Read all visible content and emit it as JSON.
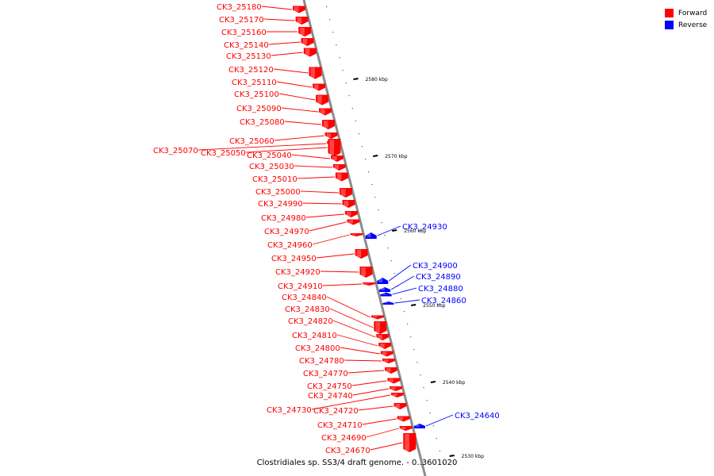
{
  "colors": {
    "forward": "#ff0000",
    "reverse": "#0000ff",
    "backbone": "#8c8c8c",
    "tick": "#000000"
  },
  "legend": {
    "forward_label": "Forward",
    "reverse_label": "Reverse"
  },
  "caption": "Clostridiales sp. SS3/4 draft genome. - 0..3601020",
  "scale_ticks": [
    {
      "label": "2580 kbp",
      "pos_kbp": 2580
    },
    {
      "label": "2570 kbp",
      "pos_kbp": 2570
    },
    {
      "label": "2560 kbp",
      "pos_kbp": 2560
    },
    {
      "label": "2550 kbp",
      "pos_kbp": 2550
    },
    {
      "label": "2540 kbp",
      "pos_kbp": 2540
    },
    {
      "label": "2530 kbp",
      "pos_kbp": 2530
    }
  ],
  "genes": [
    {
      "id": "CK3_25180",
      "strand": "forward"
    },
    {
      "id": "CK3_25170",
      "strand": "forward"
    },
    {
      "id": "CK3_25160",
      "strand": "forward"
    },
    {
      "id": "CK3_25140",
      "strand": "forward"
    },
    {
      "id": "CK3_25130",
      "strand": "forward"
    },
    {
      "id": "CK3_25120",
      "strand": "forward"
    },
    {
      "id": "CK3_25110",
      "strand": "forward"
    },
    {
      "id": "CK3_25100",
      "strand": "forward"
    },
    {
      "id": "CK3_25090",
      "strand": "forward"
    },
    {
      "id": "CK3_25080",
      "strand": "forward"
    },
    {
      "id": "CK3_25060",
      "strand": "forward"
    },
    {
      "id": "CK3_25070",
      "strand": "forward"
    },
    {
      "id": "CK3_25050",
      "strand": "forward"
    },
    {
      "id": "CK3_25040",
      "strand": "forward"
    },
    {
      "id": "CK3_25030",
      "strand": "forward"
    },
    {
      "id": "CK3_25010",
      "strand": "forward"
    },
    {
      "id": "CK3_25000",
      "strand": "forward"
    },
    {
      "id": "CK3_24990",
      "strand": "forward"
    },
    {
      "id": "CK3_24980",
      "strand": "forward"
    },
    {
      "id": "CK3_24970",
      "strand": "forward"
    },
    {
      "id": "CK3_24960",
      "strand": "forward"
    },
    {
      "id": "CK3_24950",
      "strand": "forward"
    },
    {
      "id": "CK3_24920",
      "strand": "forward"
    },
    {
      "id": "CK3_24910",
      "strand": "forward"
    },
    {
      "id": "CK3_24840",
      "strand": "forward"
    },
    {
      "id": "CK3_24830",
      "strand": "forward"
    },
    {
      "id": "CK3_24820",
      "strand": "forward"
    },
    {
      "id": "CK3_24810",
      "strand": "forward"
    },
    {
      "id": "CK3_24800",
      "strand": "forward"
    },
    {
      "id": "CK3_24780",
      "strand": "forward"
    },
    {
      "id": "CK3_24770",
      "strand": "forward"
    },
    {
      "id": "CK3_24750",
      "strand": "forward"
    },
    {
      "id": "CK3_24740",
      "strand": "forward"
    },
    {
      "id": "CK3_24730",
      "strand": "forward"
    },
    {
      "id": "CK3_24720",
      "strand": "forward"
    },
    {
      "id": "CK3_24710",
      "strand": "forward"
    },
    {
      "id": "CK3_24690",
      "strand": "forward"
    },
    {
      "id": "CK3_24670",
      "strand": "forward"
    },
    {
      "id": "CK3_24930",
      "strand": "reverse"
    },
    {
      "id": "CK3_24900",
      "strand": "reverse"
    },
    {
      "id": "CK3_24890",
      "strand": "reverse"
    },
    {
      "id": "CK3_24880",
      "strand": "reverse"
    },
    {
      "id": "CK3_24860",
      "strand": "reverse"
    },
    {
      "id": "CK3_24640",
      "strand": "reverse"
    }
  ]
}
